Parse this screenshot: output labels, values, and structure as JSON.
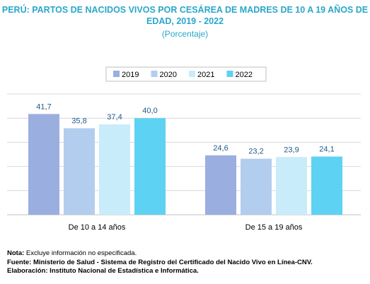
{
  "header": {
    "title_line1": "PERÚ: PARTOS DE NACIDOS VIVOS POR CESÁREA DE MADRES DE 10 A 19 AÑOS DE",
    "title_line2": "EDAD, 2019 - 2022",
    "subtitle": "(Porcentaje)"
  },
  "chart_data": {
    "type": "bar",
    "categories": [
      "De 10 a 14 años",
      "De 15 a 19 años"
    ],
    "series": [
      {
        "name": "2019",
        "color": "#9aaee0",
        "values": [
          41.7,
          24.6
        ],
        "labels": [
          "41,7",
          "24,6"
        ]
      },
      {
        "name": "2020",
        "color": "#b3cdee",
        "values": [
          35.8,
          23.2
        ],
        "labels": [
          "35,8",
          "23,2"
        ]
      },
      {
        "name": "2021",
        "color": "#c8ecfa",
        "values": [
          37.4,
          23.9
        ],
        "labels": [
          "37,4",
          "23,9"
        ]
      },
      {
        "name": "2022",
        "color": "#5ed2f2",
        "values": [
          40.0,
          24.1
        ],
        "labels": [
          "40,0",
          "24,1"
        ]
      }
    ],
    "ylim": [
      0,
      50
    ],
    "grid": true,
    "legend_position": "top",
    "label_color": "#1f5a8a"
  },
  "notes": {
    "nota_label": "Nota:",
    "nota_text": " Excluye información no especificada.",
    "fuente_label": "Fuente:",
    "fuente_text": " Ministerio de Salud - Sistema de Registro del Certificado del Nacido Vivo en Línea-CNV.",
    "elaboracion_label": "Elaboración:",
    "elaboracion_text": " Instituto Nacional de Estadística e Informática."
  }
}
